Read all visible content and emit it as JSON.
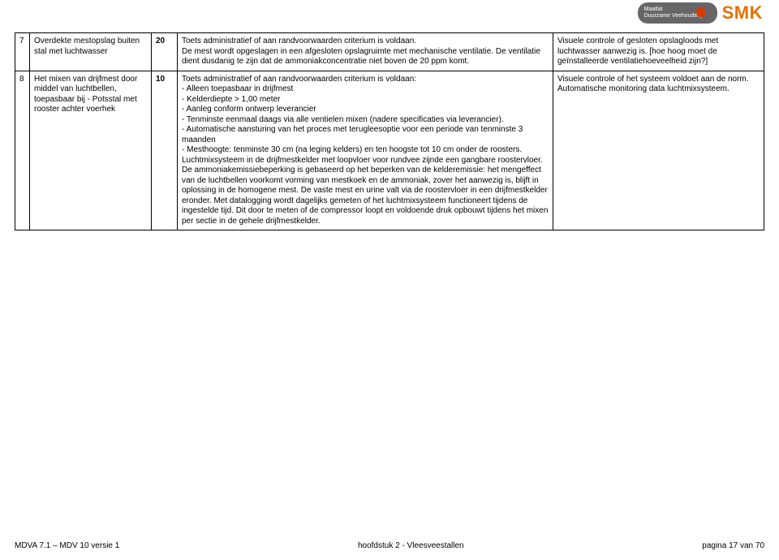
{
  "header": {
    "maatlat_line1": "Maatlat",
    "maatlat_line2": "Duurzame Veehouderij",
    "smk": "SMK"
  },
  "rows": [
    {
      "num": "7",
      "title": "Overdekte mestopslag buiten stal met luchtwasser",
      "points": "20",
      "desc": "Toets administratief of aan randvoorwaarden criterium is voldaan.\nDe mest wordt opgeslagen in een afgesloten opslagruimte met mechanische ventilatie. De ventilatie dient dusdanig te zijn dat de ammoniakconcentratie niet boven de 20 ppm komt.",
      "control": "Visuele controle of gesloten opslagloods met luchtwasser aanwezig is. [hoe hoog moet de geïnstalleerde ventilatiehoeveelheid zijn?]"
    },
    {
      "num": "8",
      "title": "Het mixen van drijfmest door middel van luchtbellen, toepasbaar bij - Potsstal met rooster achter voerhek",
      "points": "10",
      "desc": "Toets administratief of aan randvoorwaarden criterium is voldaan:\n- Alleen toepasbaar in drijfmest\n- Kelderdiepte > 1,00 meter\n- Aanleg conform ontwerp leverancier\n- Tenminste eenmaal daags via alle ventielen mixen (nadere specificaties via leverancier).\n- Automatische aansturing van het proces met terugleesoptie voor een periode van tenminste 3 maanden\n- Mesthoogte: tenminste 30 cm (na leging kelders) en ten hoogste tot 10 cm onder de roosters.\nLuchtmixsysteem in de drijfmestkelder met loopvloer voor rundvee zijnde een gangbare roostervloer. De ammoniakemissiebeperking is gebaseerd op het beperken van de kelderemissie: het mengeffect van de luchtbellen voorkomt vorming van mestkoek en de ammoniak, zover het aanwezig is, blijft in oplossing in de homogene mest. De vaste mest en urine valt via de roostervloer in een drijfmestkelder eronder. Met datalogging wordt dagelijks gemeten of het luchtmixsysteem functioneert tijdens de ingestelde tijd. Dit door te meten of de compressor loopt en voldoende druk opbouwt tijdens het mixen per sectie in de gehele drijfmestkelder.",
      "control": "Visuele controle of het systeem voldoet aan de norm. Automatische monitoring data luchtmixsysteem."
    }
  ],
  "footer": {
    "left": "MDVA 7.1 – MDV 10 versie 1",
    "center": "hoofdstuk 2 - Vleesveestallen",
    "right": "pagina 17 van 70"
  }
}
